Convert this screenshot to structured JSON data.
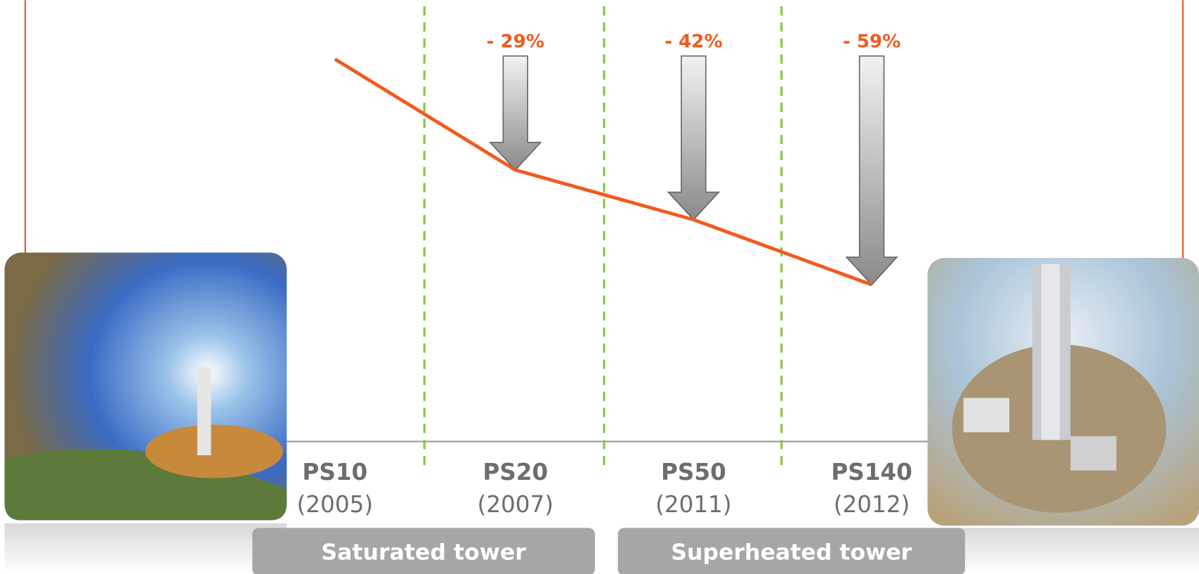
{
  "chart_data": {
    "type": "line",
    "categories": [
      "PS10",
      "PS20",
      "PS50",
      "PS140"
    ],
    "years": [
      "(2005)",
      "(2007)",
      "(2011)",
      "(2012)"
    ],
    "values": [
      100,
      71,
      58,
      41
    ],
    "color": "#f25a1e",
    "ylim": [
      0,
      100
    ],
    "changes": [
      null,
      -29,
      -42,
      -59
    ],
    "change_labels": [
      null,
      "- 29%",
      "- 42%",
      "- 59%"
    ],
    "groups": [
      "Saturated tower",
      "Superheated tower"
    ]
  }
}
